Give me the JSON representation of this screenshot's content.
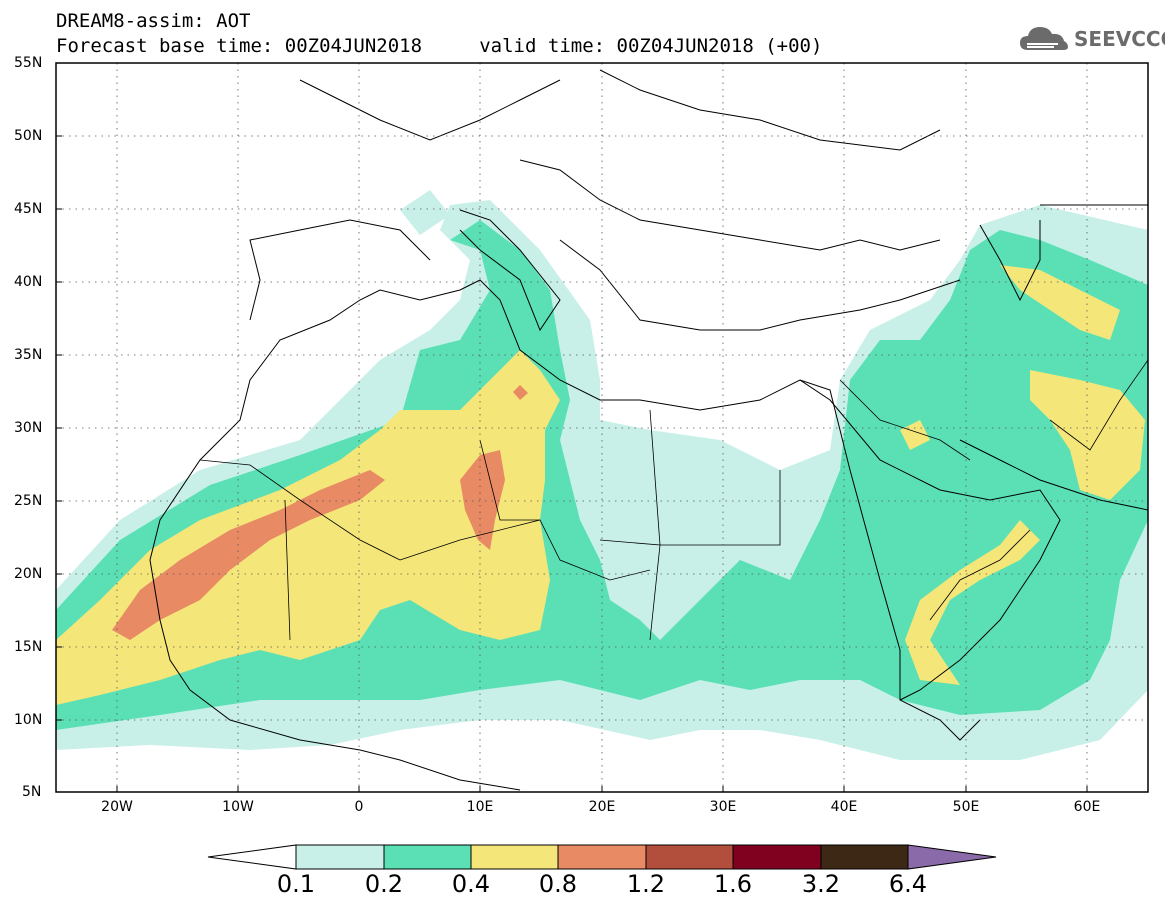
{
  "title": {
    "line1": "DREAM8-assim: AOT",
    "line2": "Forecast base time: 00Z04JUN2018     valid time: 00Z04JUN2018 (+00)"
  },
  "logo": {
    "text": "SEEVCCC",
    "icon": "cloud-icon",
    "color": "#6b6b6b"
  },
  "map": {
    "lon_range": [
      -25,
      65
    ],
    "lat_range": [
      5,
      55
    ],
    "lat_labels": [
      "55N",
      "50N",
      "45N",
      "40N",
      "35N",
      "30N",
      "25N",
      "20N",
      "15N",
      "10N",
      "5N"
    ],
    "lon_labels": [
      "20W",
      "10W",
      "0",
      "10E",
      "20E",
      "30E",
      "40E",
      "50E",
      "60E"
    ]
  },
  "colorbar": {
    "labels": [
      "0.1",
      "0.2",
      "0.4",
      "0.8",
      "1.2",
      "1.6",
      "3.2",
      "6.4"
    ],
    "colors": [
      "#c8f0e8",
      "#5ae0b4",
      "#f5e67a",
      "#e88a64",
      "#b24e3c",
      "#800020",
      "#3c2814",
      "#8a6aa8"
    ]
  },
  "chart_data": {
    "type": "heatmap",
    "title": "DREAM8-assim: AOT",
    "x_range": [
      -25,
      65
    ],
    "y_range": [
      5,
      55
    ],
    "levels": [
      0.1,
      0.2,
      0.4,
      0.8,
      1.2,
      1.6,
      3.2,
      6.4
    ]
  }
}
